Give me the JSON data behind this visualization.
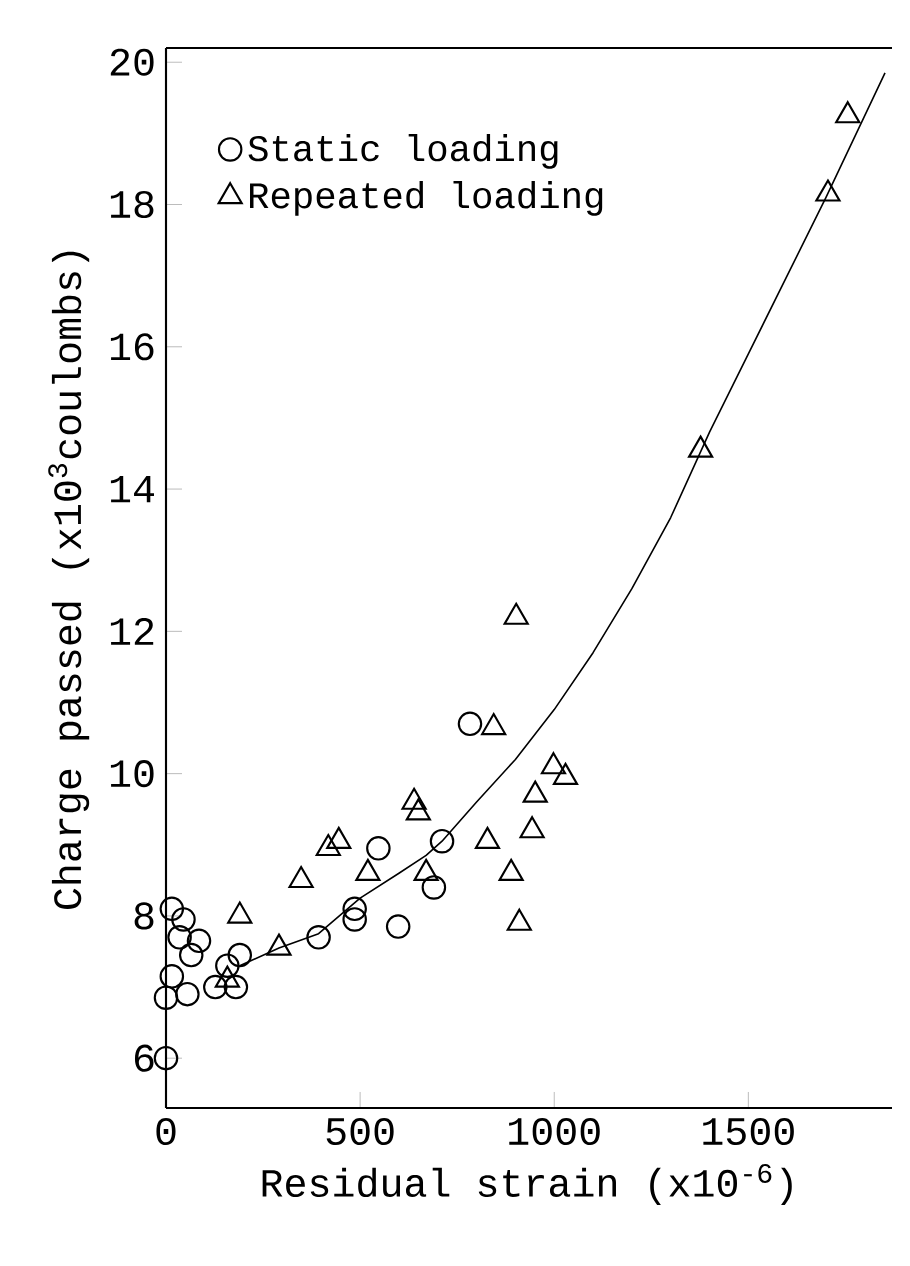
{
  "chart_data": {
    "type": "scatter",
    "xlabel": "Residual strain (x10$^{-6}$)",
    "ylabel": "Charge passed (x10$^{3}$coulombs)",
    "xlim": [
      0,
      1870
    ],
    "ylim": [
      5.3,
      20.2
    ],
    "xticks": [
      0,
      500,
      1000,
      1500
    ],
    "yticks": [
      6,
      8,
      10,
      12,
      14,
      16,
      18,
      20
    ],
    "legend": "top left",
    "grid": false,
    "series": [
      {
        "name": "Static loading",
        "marker": "circle",
        "color": "#000000",
        "x": [
          0,
          0,
          15,
          45,
          15,
          65,
          55,
          85,
          35,
          127,
          158,
          180,
          190,
          393,
          486,
          486,
          547,
          598,
          690,
          711,
          783
        ],
        "values": [
          6.0,
          6.85,
          8.1,
          7.95,
          7.15,
          7.45,
          6.9,
          7.65,
          7.7,
          7.0,
          7.3,
          7.0,
          7.45,
          7.7,
          8.1,
          7.95,
          8.95,
          7.85,
          8.4,
          9.05,
          10.7
        ]
      },
      {
        "name": "Repeated loading",
        "marker": "triangle",
        "color": "#000000",
        "x": [
          190,
          158,
          291,
          348,
          418,
          445,
          520,
          639,
          650,
          670,
          828,
          844,
          889,
          902,
          910,
          943,
          951,
          998,
          1029,
          1377,
          1705,
          1756
        ],
        "values": [
          8.0,
          7.1,
          7.55,
          8.5,
          8.95,
          9.05,
          8.6,
          9.6,
          9.45,
          8.6,
          9.05,
          10.65,
          8.6,
          12.2,
          7.9,
          9.2,
          9.7,
          10.1,
          9.95,
          14.55,
          18.15,
          19.25
        ]
      },
      {
        "type": "line",
        "marker": "none",
        "color": "#000000",
        "x": [
          190,
          291,
          393,
          500,
          600,
          670,
          711,
          800,
          900,
          1000,
          1100,
          1200,
          1300,
          1400,
          1500,
          1600,
          1700,
          1852
        ],
        "values": [
          7.3,
          7.55,
          7.75,
          8.25,
          8.6,
          8.85,
          9.05,
          9.6,
          10.2,
          10.9,
          11.7,
          12.6,
          13.6,
          14.8,
          15.9,
          17.0,
          18.1,
          19.85
        ]
      }
    ]
  }
}
